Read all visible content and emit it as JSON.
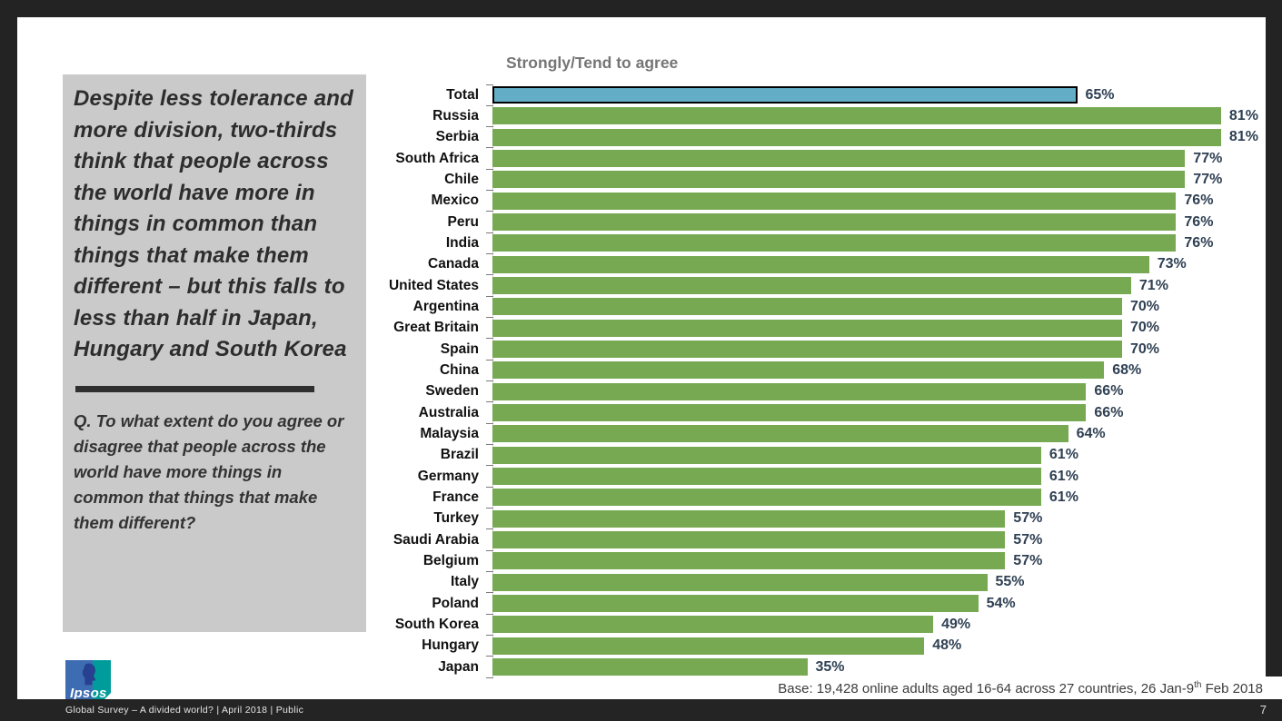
{
  "slide": {
    "headline": "Despite less tolerance and more division, two-thirds think that people across the world have more in things in common than things that make them different – but this falls to less than half in Japan, Hungary and South Korea",
    "question": "Q. To what extent do you agree or disagree that people across the world have more things in common that things that make them different?",
    "base_note": {
      "prefix": "Base: 19,428 online adults aged 16-64 across 27 countries,  26 Jan-9",
      "superscript": "th",
      "suffix": " Feb 2018"
    },
    "footer": {
      "left_text": "Global Survey – A divided world? | April 2018 | Public",
      "page_number": "7"
    },
    "logo_text": "Ipsos"
  },
  "chart_data": {
    "type": "bar",
    "orientation": "horizontal",
    "title": "Strongly/Tend to agree",
    "unit": "%",
    "xlim": [
      0,
      100
    ],
    "grid": false,
    "legend": "none",
    "categories": [
      "Total",
      "Russia",
      "Serbia",
      "South Africa",
      "Chile",
      "Mexico",
      "Peru",
      "India",
      "Canada",
      "United States",
      "Argentina",
      "Great Britain",
      "Spain",
      "China",
      "Sweden",
      "Australia",
      "Malaysia",
      "Brazil",
      "Germany",
      "France",
      "Turkey",
      "Saudi Arabia",
      "Belgium",
      "Italy",
      "Poland",
      "South Korea",
      "Hungary",
      "Japan"
    ],
    "values": [
      65,
      81,
      81,
      77,
      77,
      76,
      76,
      76,
      73,
      71,
      70,
      70,
      70,
      68,
      66,
      66,
      64,
      61,
      61,
      61,
      57,
      57,
      57,
      55,
      54,
      49,
      48,
      35
    ],
    "highlight_category": "Total",
    "colors": {
      "bar": "#76a952",
      "highlight_bar": "#63adc7",
      "highlight_border": "#000000",
      "value_label": "#2f4053",
      "title": "#757575"
    }
  }
}
